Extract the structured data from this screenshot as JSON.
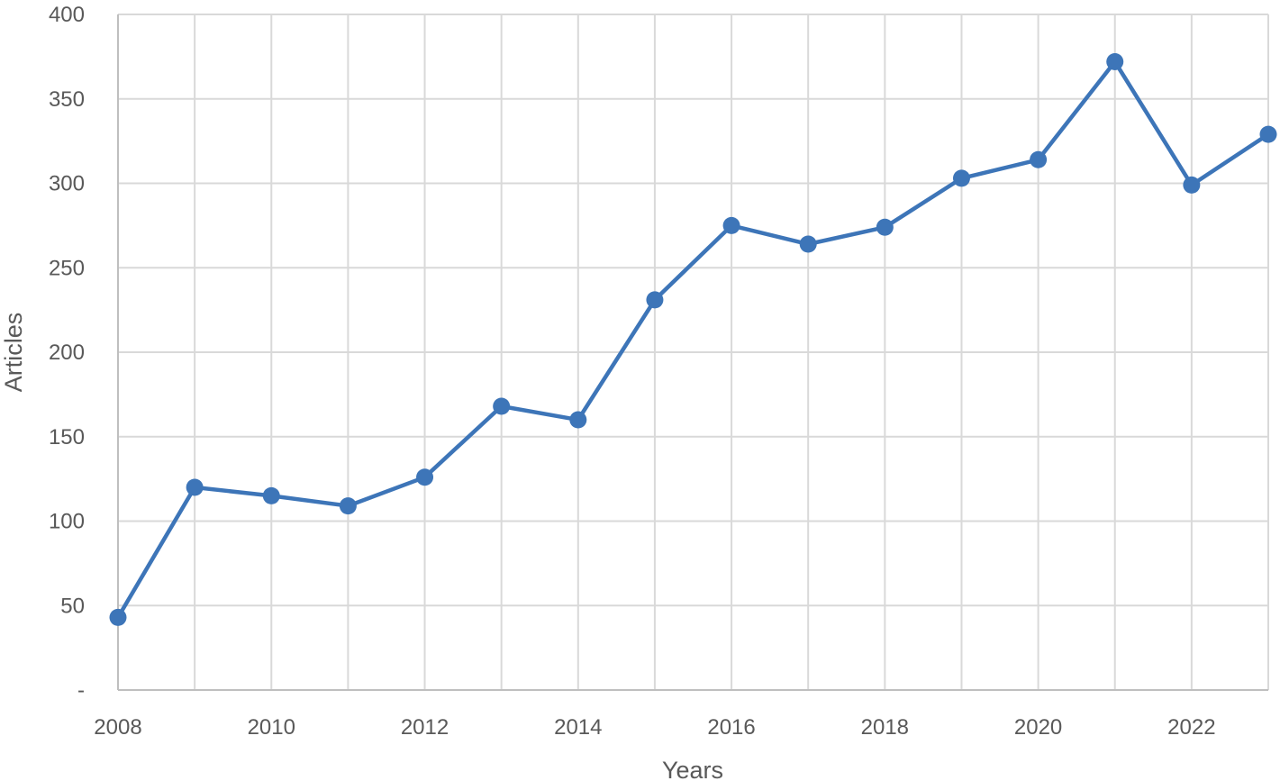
{
  "chart_data": {
    "type": "line",
    "title": "",
    "xlabel": "Years",
    "ylabel": "Articles",
    "x": [
      2008,
      2009,
      2010,
      2011,
      2012,
      2013,
      2014,
      2015,
      2016,
      2017,
      2018,
      2019,
      2020,
      2021,
      2022,
      2023
    ],
    "series": [
      {
        "values": [
          43,
          120,
          115,
          109,
          126,
          168,
          160,
          231,
          275,
          264,
          274,
          303,
          314,
          372,
          299,
          329
        ]
      }
    ],
    "xlim": [
      2008,
      2023
    ],
    "ylim": [
      0,
      400
    ],
    "x_ticks": [
      "2008",
      "2010",
      "2012",
      "2014",
      "2016",
      "2018",
      "2020",
      "2022"
    ],
    "y_ticks": [
      "-",
      "50",
      "100",
      "150",
      "200",
      "250",
      "300",
      "350",
      "400"
    ],
    "grid": true,
    "legend": "none",
    "colors": {
      "series": "#3d75b8",
      "grid": "#d9d9d9",
      "axis": "#bfbfbf",
      "text": "#595959"
    }
  }
}
